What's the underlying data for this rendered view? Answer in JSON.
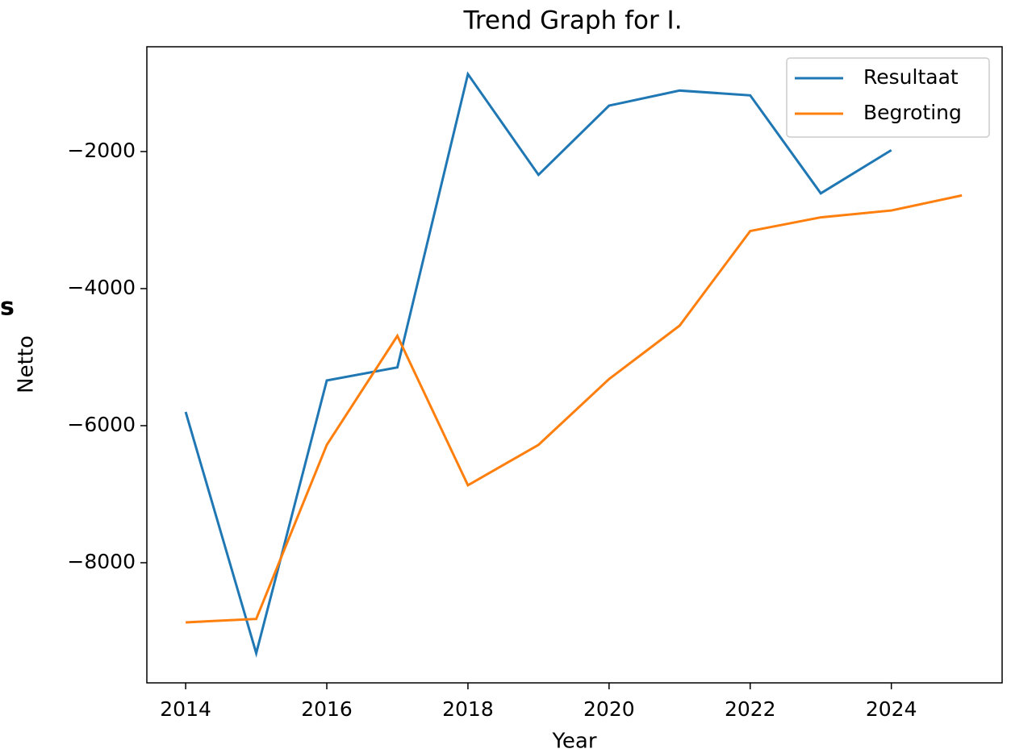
{
  "chart_data": {
    "type": "line",
    "title": "Trend Graph for I.",
    "xlabel": "Year",
    "ylabel": "Netto",
    "side_text": "s",
    "x": [
      2014,
      2015,
      2016,
      2017,
      2018,
      2019,
      2020,
      2021,
      2022,
      2023,
      2024,
      2025
    ],
    "series": [
      {
        "name": "Resultaat",
        "color": "#1f77b4",
        "values": [
          -5800,
          -9320,
          -5340,
          -5150,
          -870,
          -2340,
          -1330,
          -1110,
          -1180,
          -2610,
          -1980,
          null
        ]
      },
      {
        "name": "Begroting",
        "color": "#ff7f0e",
        "values": [
          -8870,
          -8820,
          -6280,
          -4690,
          -6870,
          -6280,
          -5320,
          -4540,
          -3160,
          -2960,
          -2860,
          -2640
        ]
      }
    ],
    "xlim": [
      2013.45,
      2025.57
    ],
    "ylim": [
      -9753,
      -471
    ],
    "xticks": [
      2014,
      2016,
      2018,
      2020,
      2022,
      2024
    ],
    "yticks": [
      {
        "value": -8000,
        "label": "−8000"
      },
      {
        "value": -6000,
        "label": "−6000"
      },
      {
        "value": -4000,
        "label": "−4000"
      },
      {
        "value": -2000,
        "label": "−2000"
      }
    ],
    "legend": "upper right"
  }
}
